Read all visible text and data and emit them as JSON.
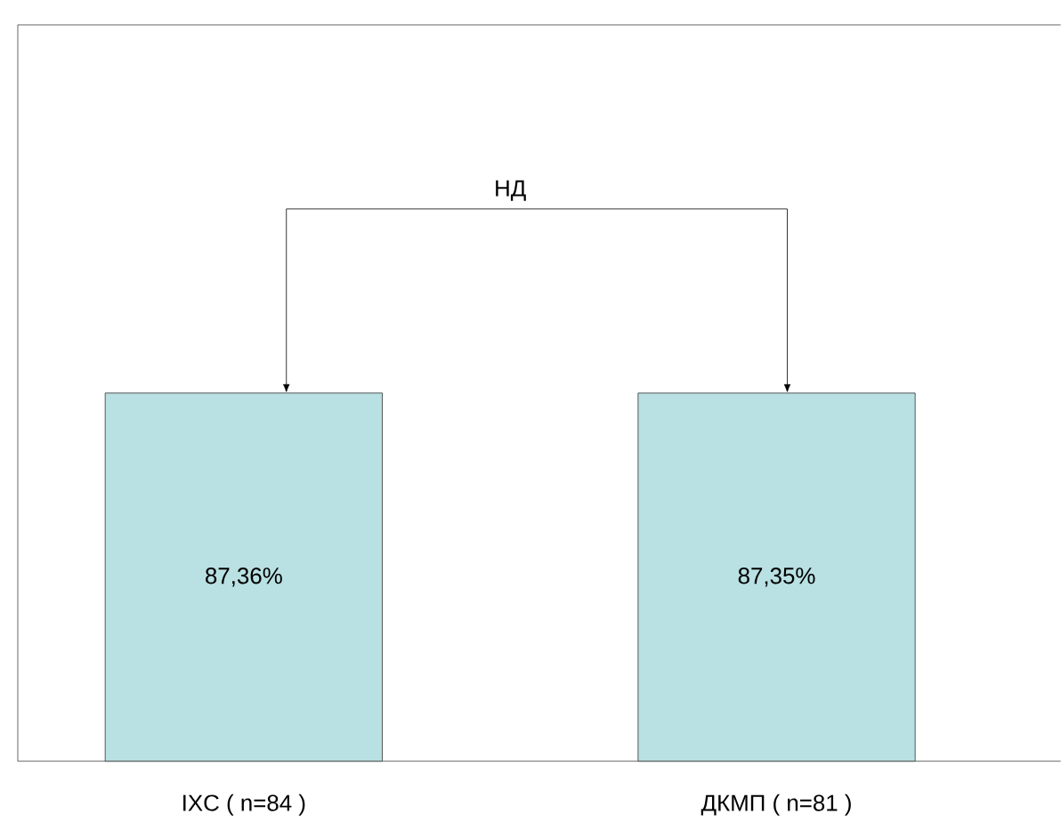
{
  "chart_data": {
    "type": "bar",
    "categories": [
      "IXC ( n=84 )",
      "ДКМП ( n=81 )"
    ],
    "values": [
      87.36,
      87.35
    ],
    "value_labels": [
      "87,36%",
      "87,35%"
    ],
    "color": "#b9e0e2",
    "annotations": [
      "НД"
    ]
  }
}
